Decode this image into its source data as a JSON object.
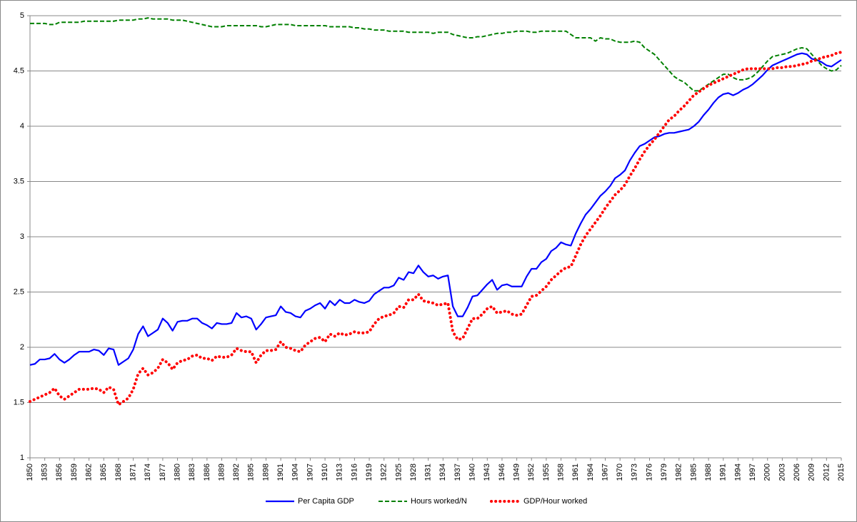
{
  "chart_data": {
    "type": "line",
    "x": [
      1850,
      1851,
      1852,
      1853,
      1854,
      1855,
      1856,
      1857,
      1858,
      1859,
      1860,
      1861,
      1862,
      1863,
      1864,
      1865,
      1866,
      1867,
      1868,
      1869,
      1870,
      1871,
      1872,
      1873,
      1874,
      1875,
      1876,
      1877,
      1878,
      1879,
      1880,
      1881,
      1882,
      1883,
      1884,
      1885,
      1886,
      1887,
      1888,
      1889,
      1890,
      1891,
      1892,
      1893,
      1894,
      1895,
      1896,
      1897,
      1898,
      1899,
      1900,
      1901,
      1902,
      1903,
      1904,
      1905,
      1906,
      1907,
      1908,
      1909,
      1910,
      1911,
      1912,
      1913,
      1914,
      1915,
      1916,
      1917,
      1918,
      1919,
      1920,
      1921,
      1922,
      1923,
      1924,
      1925,
      1926,
      1927,
      1928,
      1929,
      1930,
      1931,
      1932,
      1933,
      1934,
      1935,
      1936,
      1937,
      1938,
      1939,
      1940,
      1941,
      1942,
      1943,
      1944,
      1945,
      1946,
      1947,
      1948,
      1949,
      1950,
      1951,
      1952,
      1953,
      1954,
      1955,
      1956,
      1957,
      1958,
      1959,
      1960,
      1961,
      1962,
      1963,
      1964,
      1965,
      1966,
      1967,
      1968,
      1969,
      1970,
      1971,
      1972,
      1973,
      1974,
      1975,
      1976,
      1977,
      1978,
      1979,
      1980,
      1981,
      1982,
      1983,
      1984,
      1985,
      1986,
      1987,
      1988,
      1989,
      1990,
      1991,
      1992,
      1993,
      1994,
      1995,
      1996,
      1997,
      1998,
      1999,
      2000,
      2001,
      2002,
      2003,
      2004,
      2005,
      2006,
      2007,
      2008,
      2009,
      2010,
      2011,
      2012,
      2013,
      2014,
      2015
    ],
    "series": [
      {
        "name": "Per Capita GDP",
        "color": "#0000ff",
        "style": "solid",
        "values": [
          1.84,
          1.85,
          1.89,
          1.89,
          1.9,
          1.94,
          1.89,
          1.86,
          1.89,
          1.93,
          1.96,
          1.96,
          1.96,
          1.98,
          1.97,
          1.93,
          1.99,
          1.98,
          1.84,
          1.87,
          1.9,
          1.98,
          2.12,
          2.19,
          2.1,
          2.13,
          2.16,
          2.26,
          2.22,
          2.15,
          2.23,
          2.24,
          2.24,
          2.26,
          2.26,
          2.22,
          2.2,
          2.17,
          2.22,
          2.21,
          2.21,
          2.22,
          2.31,
          2.27,
          2.28,
          2.26,
          2.16,
          2.21,
          2.27,
          2.28,
          2.29,
          2.37,
          2.32,
          2.31,
          2.28,
          2.27,
          2.33,
          2.35,
          2.38,
          2.4,
          2.35,
          2.42,
          2.38,
          2.43,
          2.4,
          2.4,
          2.43,
          2.41,
          2.4,
          2.42,
          2.48,
          2.51,
          2.54,
          2.54,
          2.56,
          2.63,
          2.61,
          2.68,
          2.67,
          2.74,
          2.68,
          2.64,
          2.65,
          2.62,
          2.64,
          2.65,
          2.37,
          2.28,
          2.28,
          2.36,
          2.46,
          2.47,
          2.52,
          2.57,
          2.61,
          2.52,
          2.56,
          2.57,
          2.55,
          2.55,
          2.55,
          2.64,
          2.71,
          2.71,
          2.77,
          2.8,
          2.87,
          2.9,
          2.95,
          2.93,
          2.92,
          3.03,
          3.12,
          3.2,
          3.25,
          3.31,
          3.37,
          3.41,
          3.46,
          3.53,
          3.56,
          3.6,
          3.69,
          3.76,
          3.82,
          3.84,
          3.87,
          3.9,
          3.91,
          3.93,
          3.94,
          3.94,
          3.95,
          3.96,
          3.97,
          4.0,
          4.04,
          4.1,
          4.15,
          4.21,
          4.26,
          4.29,
          4.3,
          4.28,
          4.3,
          4.33,
          4.35,
          4.38,
          4.42,
          4.46,
          4.51,
          4.55,
          4.57,
          4.59,
          4.61,
          4.63,
          4.65,
          4.66,
          4.65,
          4.61,
          4.6,
          4.58,
          4.55,
          4.54,
          4.57,
          4.6
        ]
      },
      {
        "name": "Hours worked/N",
        "color": "#008000",
        "style": "dashed",
        "values": [
          4.93,
          4.93,
          4.93,
          4.93,
          4.92,
          4.92,
          4.94,
          4.94,
          4.94,
          4.94,
          4.94,
          4.95,
          4.95,
          4.95,
          4.95,
          4.95,
          4.95,
          4.95,
          4.96,
          4.96,
          4.96,
          4.96,
          4.97,
          4.97,
          4.98,
          4.97,
          4.97,
          4.97,
          4.97,
          4.96,
          4.96,
          4.96,
          4.95,
          4.94,
          4.93,
          4.92,
          4.91,
          4.9,
          4.9,
          4.9,
          4.91,
          4.91,
          4.91,
          4.91,
          4.91,
          4.91,
          4.91,
          4.9,
          4.9,
          4.91,
          4.92,
          4.92,
          4.92,
          4.92,
          4.91,
          4.91,
          4.91,
          4.91,
          4.91,
          4.91,
          4.91,
          4.9,
          4.9,
          4.9,
          4.9,
          4.9,
          4.89,
          4.89,
          4.88,
          4.88,
          4.87,
          4.87,
          4.87,
          4.86,
          4.86,
          4.86,
          4.86,
          4.85,
          4.85,
          4.85,
          4.85,
          4.85,
          4.84,
          4.85,
          4.85,
          4.85,
          4.83,
          4.82,
          4.81,
          4.8,
          4.8,
          4.81,
          4.81,
          4.82,
          4.83,
          4.84,
          4.84,
          4.85,
          4.85,
          4.86,
          4.86,
          4.86,
          4.85,
          4.85,
          4.86,
          4.86,
          4.86,
          4.86,
          4.86,
          4.86,
          4.83,
          4.8,
          4.8,
          4.8,
          4.8,
          4.77,
          4.8,
          4.79,
          4.79,
          4.77,
          4.76,
          4.76,
          4.76,
          4.77,
          4.76,
          4.71,
          4.68,
          4.65,
          4.6,
          4.55,
          4.5,
          4.45,
          4.42,
          4.4,
          4.36,
          4.32,
          4.32,
          4.35,
          4.38,
          4.41,
          4.44,
          4.47,
          4.47,
          4.44,
          4.42,
          4.42,
          4.43,
          4.45,
          4.49,
          4.54,
          4.59,
          4.63,
          4.64,
          4.65,
          4.66,
          4.68,
          4.7,
          4.71,
          4.7,
          4.65,
          4.6,
          4.55,
          4.52,
          4.5,
          4.51,
          4.55
        ]
      },
      {
        "name": "GDP/Hour worked",
        "color": "#ff0000",
        "style": "dotted",
        "values": [
          1.51,
          1.53,
          1.55,
          1.57,
          1.59,
          1.63,
          1.56,
          1.53,
          1.56,
          1.59,
          1.62,
          1.62,
          1.62,
          1.63,
          1.62,
          1.59,
          1.64,
          1.62,
          1.48,
          1.51,
          1.54,
          1.62,
          1.76,
          1.81,
          1.75,
          1.77,
          1.81,
          1.89,
          1.86,
          1.8,
          1.86,
          1.88,
          1.89,
          1.92,
          1.93,
          1.9,
          1.9,
          1.88,
          1.92,
          1.91,
          1.91,
          1.93,
          1.99,
          1.97,
          1.96,
          1.96,
          1.86,
          1.93,
          1.97,
          1.97,
          1.98,
          2.05,
          2.0,
          1.99,
          1.97,
          1.96,
          2.02,
          2.05,
          2.08,
          2.09,
          2.05,
          2.12,
          2.1,
          2.13,
          2.11,
          2.12,
          2.14,
          2.13,
          2.13,
          2.14,
          2.21,
          2.26,
          2.28,
          2.29,
          2.31,
          2.37,
          2.36,
          2.43,
          2.43,
          2.48,
          2.42,
          2.41,
          2.4,
          2.38,
          2.39,
          2.4,
          2.14,
          2.07,
          2.08,
          2.17,
          2.26,
          2.26,
          2.3,
          2.35,
          2.37,
          2.31,
          2.32,
          2.33,
          2.3,
          2.29,
          2.3,
          2.38,
          2.46,
          2.47,
          2.51,
          2.55,
          2.61,
          2.65,
          2.69,
          2.72,
          2.73,
          2.83,
          2.93,
          3.01,
          3.07,
          3.13,
          3.19,
          3.26,
          3.32,
          3.38,
          3.42,
          3.47,
          3.55,
          3.62,
          3.7,
          3.77,
          3.83,
          3.88,
          3.94,
          4.0,
          4.06,
          4.09,
          4.14,
          4.18,
          4.23,
          4.28,
          4.31,
          4.34,
          4.37,
          4.39,
          4.41,
          4.43,
          4.45,
          4.47,
          4.49,
          4.51,
          4.52,
          4.52,
          4.52,
          4.52,
          4.52,
          4.52,
          4.53,
          4.53,
          4.54,
          4.54,
          4.55,
          4.56,
          4.57,
          4.59,
          4.6,
          4.62,
          4.63,
          4.64,
          4.66,
          4.67
        ]
      }
    ],
    "xlim": [
      1850,
      2015
    ],
    "xticks": [
      1850,
      1853,
      1856,
      1859,
      1862,
      1865,
      1868,
      1871,
      1874,
      1877,
      1880,
      1883,
      1886,
      1889,
      1892,
      1895,
      1898,
      1901,
      1904,
      1907,
      1910,
      1913,
      1916,
      1919,
      1922,
      1925,
      1928,
      1931,
      1934,
      1937,
      1940,
      1943,
      1946,
      1949,
      1952,
      1955,
      1958,
      1961,
      1964,
      1967,
      1970,
      1973,
      1976,
      1979,
      1982,
      1985,
      1988,
      1991,
      1994,
      1997,
      2000,
      2003,
      2006,
      2009,
      2012,
      2015
    ],
    "ylim": [
      1,
      5
    ],
    "yticks": [
      1,
      1.5,
      2,
      2.5,
      3,
      3.5,
      4,
      4.5,
      5
    ],
    "grid": true,
    "legend": "bottom"
  }
}
